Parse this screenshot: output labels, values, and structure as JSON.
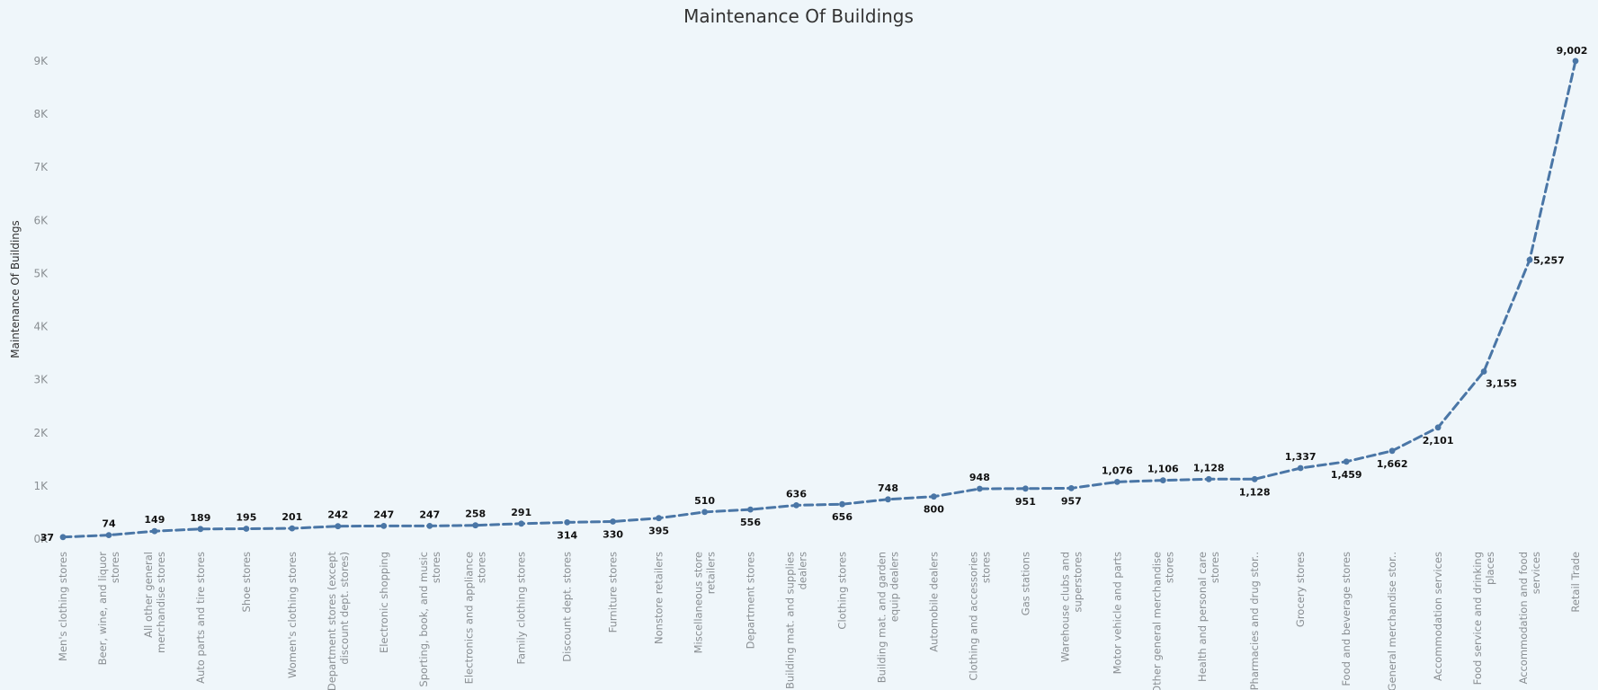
{
  "colors": {
    "background": "#eff6fa",
    "line": "#4a76a6",
    "tick_text": "#8a8f93",
    "label_text": "#111111"
  },
  "chart_data": {
    "type": "line",
    "title": "Maintenance Of Buildings",
    "xlabel": "",
    "ylabel": "Maintenance Of Buildings",
    "ylim": [
      0,
      9000
    ],
    "yticks": [
      "0K",
      "1K",
      "2K",
      "3K",
      "4K",
      "5K",
      "6K",
      "7K",
      "8K",
      "9K"
    ],
    "line_style": "dashed",
    "grid": false,
    "categories": [
      "Men's clothing stores",
      "Beer, wine, and liquor stores",
      "All other general merchandise stores",
      "Auto parts and tire stores",
      "Shoe stores",
      "Women's clothing stores",
      "Department stores (except discount dept. stores)",
      "Electronic shopping",
      "Sporting, book, and music stores",
      "Electronics and appliance stores",
      "Family clothing stores",
      "Discount dept. stores",
      "Furniture stores",
      "Nonstore retailers",
      "Miscellaneous store retailers",
      "Department stores",
      "Building mat. and supplies dealers",
      "Clothing stores",
      "Building mat. and garden equip dealers",
      "Automobile dealers",
      "Clothing and accessories stores",
      "Gas stations",
      "Warehouse clubs and superstores",
      "Motor vehicle and parts",
      "Other general merchandise stores",
      "Health and personal care stores",
      "Pharmacies and drug stor..",
      "Grocery stores",
      "Food and beverage stores",
      "General merchandise stor..",
      "Accommodation services",
      "Food service and drinking places",
      "Accommodation and food services",
      "Retail Trade"
    ],
    "x_tick_lines": [
      [
        "Men's clothing stores"
      ],
      [
        "Beer, wine, and liquor",
        "stores"
      ],
      [
        "All other general",
        "merchandise stores"
      ],
      [
        "Auto parts and tire stores"
      ],
      [
        "Shoe stores"
      ],
      [
        "Women's clothing stores"
      ],
      [
        "Department stores (except",
        "discount dept. stores)"
      ],
      [
        "Electronic shopping"
      ],
      [
        "Sporting, book, and music",
        "stores"
      ],
      [
        "Electronics and appliance",
        "stores"
      ],
      [
        "Family clothing stores"
      ],
      [
        "Discount dept. stores"
      ],
      [
        "Furniture stores"
      ],
      [
        "Nonstore retailers"
      ],
      [
        "Miscellaneous store",
        "retailers"
      ],
      [
        "Department stores"
      ],
      [
        "Building mat. and supplies",
        "dealers"
      ],
      [
        "Clothing stores"
      ],
      [
        "Building mat. and garden",
        "equip dealers"
      ],
      [
        "Automobile dealers"
      ],
      [
        "Clothing and accessories",
        "stores"
      ],
      [
        "Gas stations"
      ],
      [
        "Warehouse clubs and",
        "superstores"
      ],
      [
        "Motor vehicle and parts"
      ],
      [
        "Other general merchandise",
        "stores"
      ],
      [
        "Health and personal care",
        "stores"
      ],
      [
        "Pharmacies and drug stor.."
      ],
      [
        "Grocery stores"
      ],
      [
        "Food and beverage stores"
      ],
      [
        "General merchandise stor.."
      ],
      [
        "Accommodation services"
      ],
      [
        "Food service and drinking",
        "places"
      ],
      [
        "Accommodation and food",
        "services"
      ],
      [
        "Retail Trade"
      ]
    ],
    "series": [
      {
        "values": [
          37,
          74,
          149,
          189,
          195,
          201,
          242,
          247,
          247,
          258,
          291,
          314,
          330,
          395,
          510,
          556,
          636,
          656,
          748,
          800,
          948,
          951,
          957,
          1076,
          1106,
          1128,
          1128,
          1337,
          1459,
          1662,
          2101,
          3155,
          5257,
          9002
        ],
        "data_labels": [
          "37",
          "74",
          "149",
          "189",
          "195",
          "201",
          "242",
          "247",
          "247",
          "258",
          "291",
          "314",
          "330",
          "395",
          "510",
          "556",
          "636",
          "656",
          "748",
          "800",
          "948",
          "951",
          "957",
          "1,076",
          "1,106",
          "1,128",
          "1,128",
          "1,337",
          "1,459",
          "1,662",
          "2,101",
          "3,155",
          "5,257",
          "9,002"
        ]
      }
    ]
  }
}
